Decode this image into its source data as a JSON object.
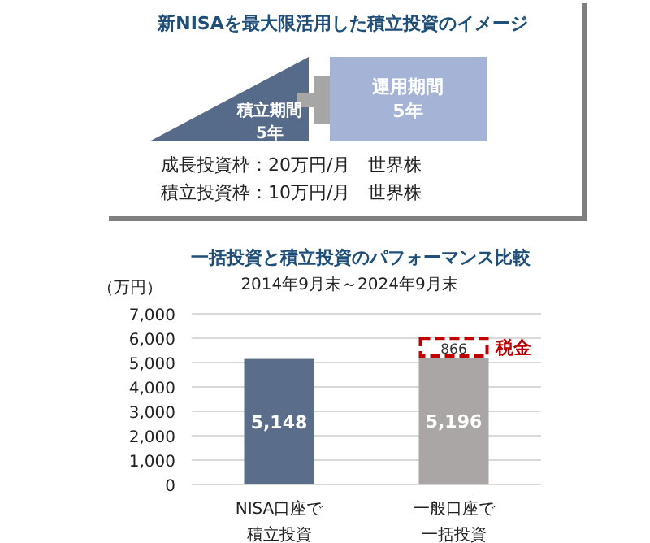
{
  "chart_data": [
    {
      "type": "other",
      "title": "新NISAを最大限活用した積立投資のイメージ",
      "annotations": [
        "積立期間\n5年",
        "運用期間\n5年",
        "成長投資枠：20万円/月　世界株",
        "積立投資枠：10万円/月　世界株"
      ]
    },
    {
      "type": "bar",
      "title": "一括投資と積立投資のパフォーマンス比較",
      "subtitle": "2014年9月末～2024年9月末",
      "ylabel": "（万円）",
      "categories": [
        "NISA口座で積立投資",
        "一般口座で一括投資"
      ],
      "stacked": true,
      "series": [
        {
          "colors": [
            "#5a6e8c",
            "#a9a6a5"
          ],
          "values": [
            5148,
            5196
          ],
          "value_labels": [
            "5,148",
            "5,196"
          ]
        },
        {
          "name": "税金",
          "color": "#c00000",
          "line_style": "dashed",
          "values": [
            null,
            866
          ],
          "value_labels": [
            null,
            "866"
          ]
        }
      ],
      "ylim": [
        0,
        7000
      ],
      "yticks": [
        0,
        {
          "value": 1000,
          "label": "1,000"
        },
        {
          "value": 2000,
          "label": "2,000"
        },
        {
          "value": 3000,
          "label": "3,000"
        },
        {
          "value": 4000,
          "label": "4,000"
        },
        {
          "value": 5000,
          "label": "5,000"
        },
        {
          "value": 6000,
          "label": "6,000"
        },
        {
          "value": 7000,
          "label": "7,000"
        }
      ],
      "grid": "y"
    }
  ]
}
